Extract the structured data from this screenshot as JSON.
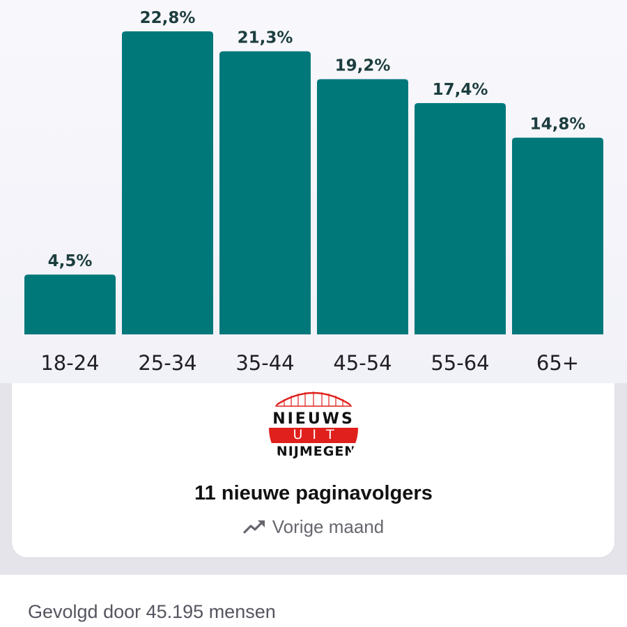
{
  "chart_data": {
    "type": "bar",
    "categories": [
      "18-24",
      "25-34",
      "35-44",
      "45-54",
      "55-64",
      "65+"
    ],
    "values": [
      4.5,
      22.8,
      21.3,
      19.2,
      17.4,
      14.8
    ],
    "value_labels": [
      "4,5%",
      "22,8%",
      "21,3%",
      "19,2%",
      "17,4%",
      "14,8%"
    ],
    "ylim": [
      0,
      22.8
    ],
    "bar_color": "#00787a",
    "grid": false,
    "legend": "none",
    "title": "",
    "xlabel": "",
    "ylabel": ""
  },
  "card": {
    "logo": {
      "line1": "NIEUWS",
      "line2": "UIT",
      "line3": "NIJMEGEN"
    },
    "title": "11 nieuwe paginavolgers",
    "period_icon": "trending-up-icon",
    "period_label": "Vorige maand"
  },
  "footer": {
    "followed_by": "Gevolgd door 45.195 mensen"
  },
  "colors": {
    "accent": "#00787a",
    "logo_red": "#e0201c"
  }
}
